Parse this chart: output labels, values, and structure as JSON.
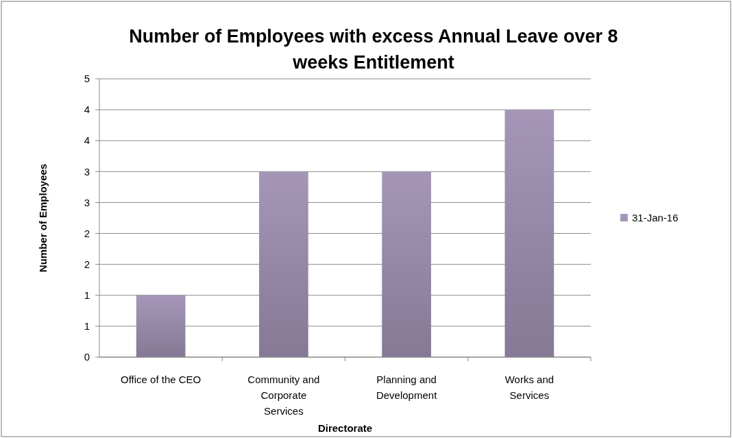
{
  "chart_data": {
    "type": "bar",
    "title": "Number of Employees with excess Annual Leave over 8 weeks Entitlement",
    "xlabel": "Directorate",
    "ylabel": "Number of Employees",
    "categories": [
      "Office of the CEO",
      "Community and Corporate Services",
      "Planning and Development",
      "Works and Services"
    ],
    "series": [
      {
        "name": "31-Jan-16",
        "color": "#a596b8",
        "values": [
          1,
          3,
          3,
          4
        ]
      }
    ],
    "ylim": [
      0,
      4.5
    ],
    "yticks": [
      0,
      {
        "value": 0.5,
        "label": "1"
      },
      1,
      {
        "value": 1.5,
        "label": "2"
      },
      2,
      {
        "value": 2.5,
        "label": "3"
      },
      3,
      {
        "value": 3.5,
        "label": "4"
      },
      4,
      {
        "value": 4.5,
        "label": "5"
      }
    ],
    "grid": "y",
    "legend": "right"
  }
}
